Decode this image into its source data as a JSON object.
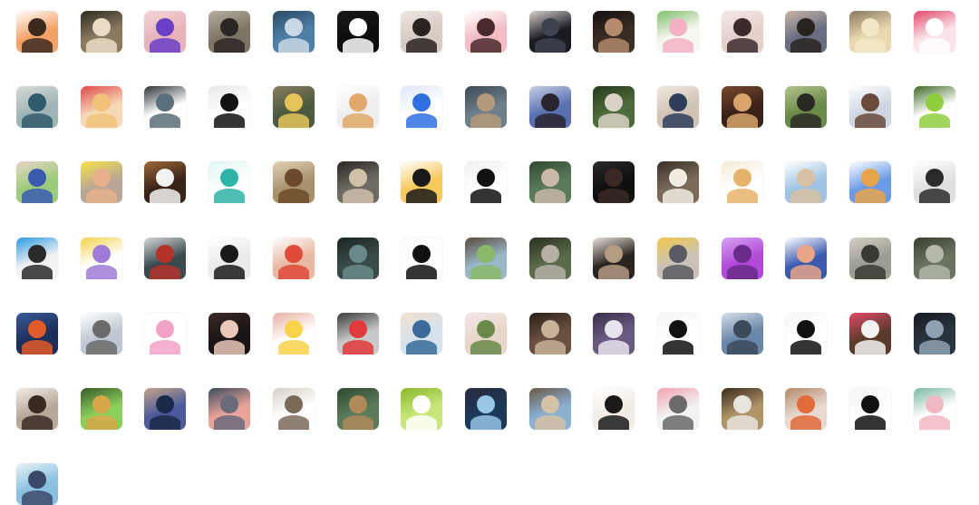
{
  "avatars": [
    {
      "bg": "#f4a266",
      "fg": "#3d2a1e",
      "ac": "#ffffff"
    },
    {
      "bg": "#8a7a5e",
      "fg": "#e9dcc6",
      "ac": "#2f2a22"
    },
    {
      "bg": "#e8b3b8",
      "fg": "#6a3fc6",
      "ac": "#f2d4d8"
    },
    {
      "bg": "#7d7367",
      "fg": "#2b2622",
      "ac": "#b7aea2"
    },
    {
      "bg": "#4f7fa6",
      "fg": "#c9d8e4",
      "ac": "#2b4a63"
    },
    {
      "bg": "#0d0d0d",
      "fg": "#ffffff",
      "ac": "#1a1a1a"
    },
    {
      "bg": "#d7cbc3",
      "fg": "#2a2220",
      "ac": "#efe6e0"
    },
    {
      "bg": "#f2bcc2",
      "fg": "#4a2b2b",
      "ac": "#ffffff"
    },
    {
      "bg": "#1a1a22",
      "fg": "#3e4350",
      "ac": "#d4d0cb"
    },
    {
      "bg": "#3a2d24",
      "fg": "#b38a6a",
      "ac": "#151010"
    },
    {
      "bg": "#f7f7f2",
      "fg": "#f4b1c4",
      "ac": "#7fbf6a"
    },
    {
      "bg": "#e6d0cb",
      "fg": "#3b2b2b",
      "ac": "#f5e9e6"
    },
    {
      "bg": "#6a6e82",
      "fg": "#2a2420",
      "ac": "#c9b4a6"
    },
    {
      "bg": "#e8d9b0",
      "fg": "#f3e6c5",
      "ac": "#8a7a5e"
    },
    {
      "bg": "#fbe3ea",
      "fg": "#ffffff",
      "ac": "#e04a6a"
    },
    {
      "bg": "#9fb5b5",
      "fg": "#2f5a6a",
      "ac": "#d8dcd8"
    },
    {
      "bg": "#f7d9b8",
      "fg": "#f2c27a",
      "ac": "#e04a4a"
    },
    {
      "bg": "#ffffff",
      "fg": "#5b6f78",
      "ac": "#2b3236"
    },
    {
      "bg": "#ffffff",
      "fg": "#111111",
      "ac": "#e8e8e8"
    },
    {
      "bg": "#4b5a3e",
      "fg": "#e4c35a",
      "ac": "#8a7a5e"
    },
    {
      "bg": "#eeeeee",
      "fg": "#e0a86a",
      "ac": "#ffffff"
    },
    {
      "bg": "#ffffff",
      "fg": "#2f6fe0",
      "ac": "#dde7fb"
    },
    {
      "bg": "#6f7f8a",
      "fg": "#b59a7a",
      "ac": "#3b4a55"
    },
    {
      "bg": "#5a6fb0",
      "fg": "#2a2430",
      "ac": "#c7d0e8"
    },
    {
      "bg": "#4e6b3b",
      "fg": "#d9d2c6",
      "ac": "#253a1c"
    },
    {
      "bg": "#cfc3b5",
      "fg": "#2f3e5a",
      "ac": "#f0e8df"
    },
    {
      "bg": "#3b2218",
      "fg": "#d9a46a",
      "ac": "#7a4a2e"
    },
    {
      "bg": "#6a8a4a",
      "fg": "#2a2a24",
      "ac": "#b3c48a"
    },
    {
      "bg": "#cfd6e2",
      "fg": "#6a4a3a",
      "ac": "#ffffff"
    },
    {
      "bg": "#ffffff",
      "fg": "#8fcf3e",
      "ac": "#3e6a22"
    },
    {
      "bg": "#9ccc7a",
      "fg": "#3a5ab0",
      "ac": "#e8d6c8"
    },
    {
      "bg": "#b7a696",
      "fg": "#e8b08a",
      "ac": "#f7e24a"
    },
    {
      "bg": "#3a2418",
      "fg": "#f2f2f2",
      "ac": "#a06a3a"
    },
    {
      "bg": "#ffffff",
      "fg": "#2fb3a6",
      "ac": "#dff5f2"
    },
    {
      "bg": "#a8926e",
      "fg": "#6a4a2a",
      "ac": "#e3d2b6"
    },
    {
      "bg": "#6f6a62",
      "fg": "#cfc0aa",
      "ac": "#2a2522"
    },
    {
      "bg": "#f7c85a",
      "fg": "#1a1a1a",
      "ac": "#ffffff"
    },
    {
      "bg": "#ffffff",
      "fg": "#111111",
      "ac": "#f0f0f0"
    },
    {
      "bg": "#5a7a5a",
      "fg": "#c9b9a6",
      "ac": "#2f4a2f"
    },
    {
      "bg": "#0f0f10",
      "fg": "#3a2a26",
      "ac": "#2a2a2a"
    },
    {
      "bg": "#7a6a5a",
      "fg": "#f2ece2",
      "ac": "#3a2f26"
    },
    {
      "bg": "#ffffff",
      "fg": "#e6b36a",
      "ac": "#f6e9d4"
    },
    {
      "bg": "#9fc3e2",
      "fg": "#d6c2a2",
      "ac": "#ffffff"
    },
    {
      "bg": "#6a9ae6",
      "fg": "#e8a44a",
      "ac": "#ffffff"
    },
    {
      "bg": "#e0e0e0",
      "fg": "#2a2a2a",
      "ac": "#ffffff"
    },
    {
      "bg": "#f2f2f2",
      "fg": "#2a2a2a",
      "ac": "#2a9ae2"
    },
    {
      "bg": "#ffffff",
      "fg": "#a07ad6",
      "ac": "#f2d24a"
    },
    {
      "bg": "#3a4a4e",
      "fg": "#b3322a",
      "ac": "#d4d8da"
    },
    {
      "bg": "#ebebeb",
      "fg": "#1a1a1a",
      "ac": "#ffffff"
    },
    {
      "bg": "#e8b8a2",
      "fg": "#e04a3a",
      "ac": "#ffffff"
    },
    {
      "bg": "#3a4a48",
      "fg": "#6a8a8a",
      "ac": "#1a2422"
    },
    {
      "bg": "#ffffff",
      "fg": "#111111",
      "ac": "#fafafa"
    },
    {
      "bg": "#9ab6c8",
      "fg": "#8ab86a",
      "ac": "#5a4a3a"
    },
    {
      "bg": "#5a6a4a",
      "fg": "#b6b0a6",
      "ac": "#2a3020"
    },
    {
      "bg": "#2a2420",
      "fg": "#b39a82",
      "ac": "#e8e0d6"
    },
    {
      "bg": "#c9c2b8",
      "fg": "#5a5a62",
      "ac": "#f2c84a"
    },
    {
      "bg": "#b04ad6",
      "fg": "#6a2a8a",
      "ac": "#d6a2f2"
    },
    {
      "bg": "#3a5ab0",
      "fg": "#e8a48a",
      "ac": "#ffffff"
    },
    {
      "bg": "#9a9e92",
      "fg": "#3a3a30",
      "ac": "#d6cfc6"
    },
    {
      "bg": "#6a7260",
      "fg": "#b3b8aa",
      "ac": "#3a4030"
    },
    {
      "bg": "#1c2f5a",
      "fg": "#e05a2a",
      "ac": "#3a5a9a"
    },
    {
      "bg": "#bfc8d2",
      "fg": "#6a6a6a",
      "ac": "#ffffff"
    },
    {
      "bg": "#ffffff",
      "fg": "#f2a2c6",
      "ac": "#ffffff"
    },
    {
      "bg": "#1a1416",
      "fg": "#e8c8b8",
      "ac": "#3a2a26"
    },
    {
      "bg": "#ffffff",
      "fg": "#f7d24a",
      "ac": "#e8b0a0"
    },
    {
      "bg": "#c9c9c9",
      "fg": "#e03a3a",
      "ac": "#3a3a3a"
    },
    {
      "bg": "#d6e2ec",
      "fg": "#3a6a9a",
      "ac": "#f2e0cf"
    },
    {
      "bg": "#e8d6c8",
      "fg": "#6a8a4a",
      "ac": "#f2e6ea"
    },
    {
      "bg": "#6a5040",
      "fg": "#c8b29a",
      "ac": "#2a1f18"
    },
    {
      "bg": "#6a5a82",
      "fg": "#e8e4ee",
      "ac": "#3a2f4a"
    },
    {
      "bg": "#ffffff",
      "fg": "#111111",
      "ac": "#f5f5f5"
    },
    {
      "bg": "#6a86a8",
      "fg": "#3a4a5a",
      "ac": "#d6dfe8"
    },
    {
      "bg": "#ffffff",
      "fg": "#111111",
      "ac": "#f7f7f7"
    },
    {
      "bg": "#5a3a2a",
      "fg": "#f2f2f2",
      "ac": "#e04a6a"
    },
    {
      "bg": "#2a3440",
      "fg": "#8fa2b3",
      "ac": "#141a20"
    },
    {
      "bg": "#b8a89a",
      "fg": "#3a2a24",
      "ac": "#f2ece6"
    },
    {
      "bg": "#8acf5a",
      "fg": "#d6a84a",
      "ac": "#3a5a2a"
    },
    {
      "bg": "#4a5a9a",
      "fg": "#1a2a4a",
      "ac": "#c6a48a"
    },
    {
      "bg": "#e8a49a",
      "fg": "#6a6a7a",
      "ac": "#3a4a5a"
    },
    {
      "bg": "#ffffff",
      "fg": "#7a6a5a",
      "ac": "#d6cfc6"
    },
    {
      "bg": "#5a7a5a",
      "fg": "#b08a5a",
      "ac": "#2f4a2f"
    },
    {
      "bg": "#c8e67a",
      "fg": "#ffffff",
      "ac": "#8ab82a"
    },
    {
      "bg": "#1a3a5a",
      "fg": "#9ac6e6",
      "ac": "#2a2a3a"
    },
    {
      "bg": "#8ab0d0",
      "fg": "#d6c2a6",
      "ac": "#6a5a4a"
    },
    {
      "bg": "#f2ece6",
      "fg": "#1a1a1a",
      "ac": "#ffffff"
    },
    {
      "bg": "#f2f2f2",
      "fg": "#6a6a6a",
      "ac": "#f2a2b2"
    },
    {
      "bg": "#b0946a",
      "fg": "#e8e4de",
      "ac": "#3a2a1a"
    },
    {
      "bg": "#e8dad0",
      "fg": "#e06a3a",
      "ac": "#b38a6a"
    },
    {
      "bg": "#ffffff",
      "fg": "#111111",
      "ac": "#f5f5f5"
    },
    {
      "bg": "#ffffff",
      "fg": "#f2b8c2",
      "ac": "#7ab8a2"
    },
    {
      "bg": "#8ac0e0",
      "fg": "#3a4a6a",
      "ac": "#e8f2f8"
    }
  ]
}
